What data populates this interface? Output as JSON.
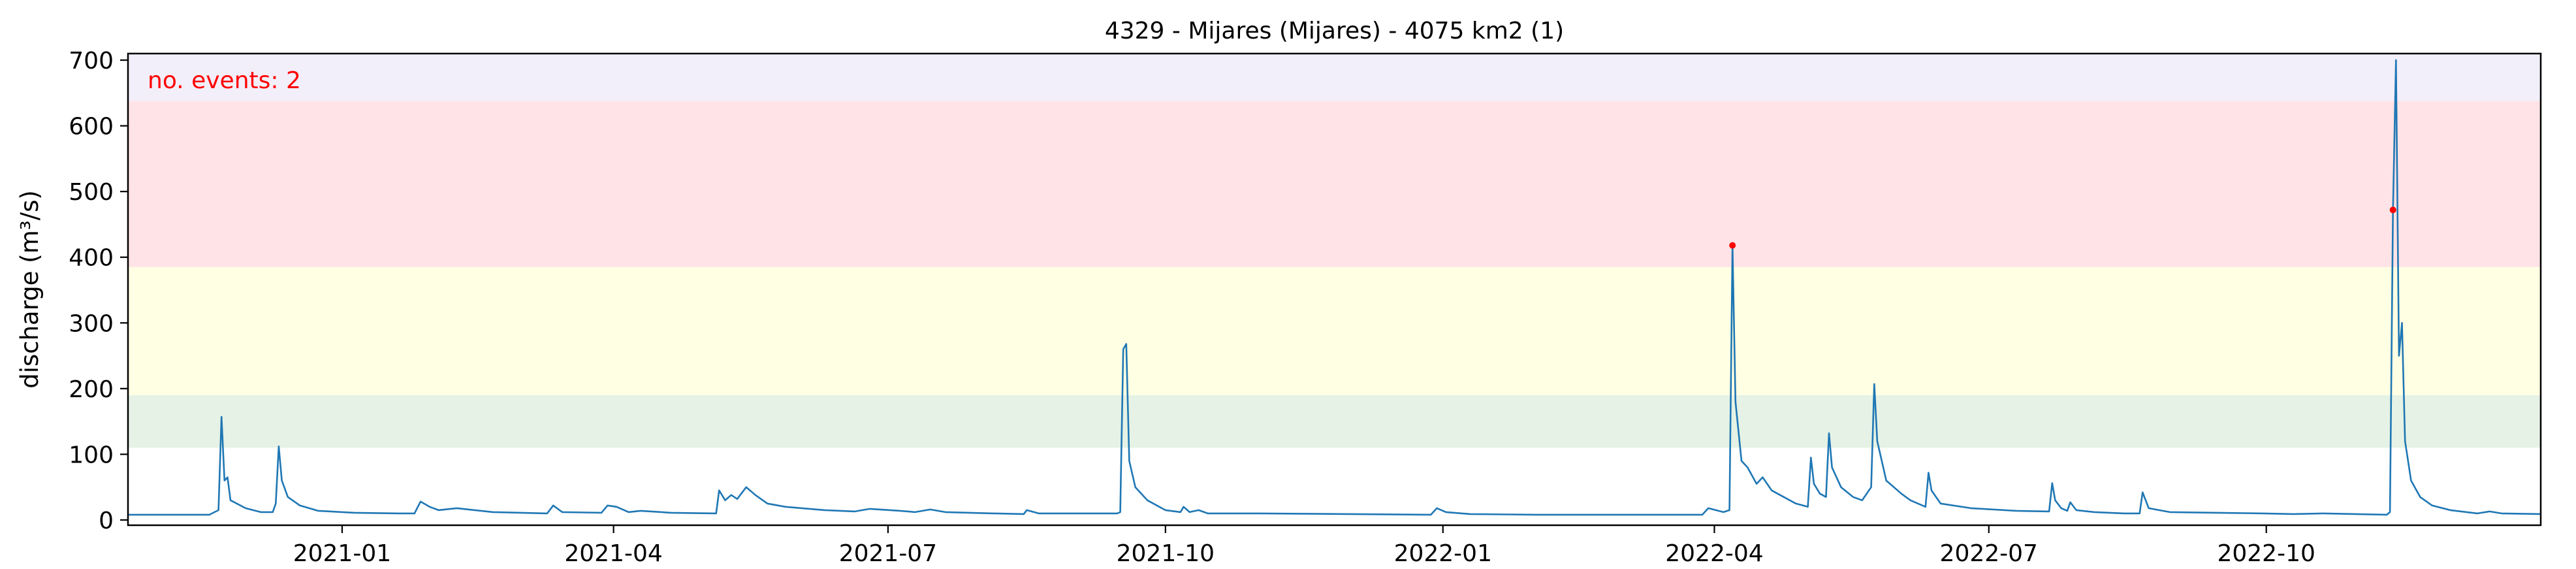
{
  "chart_data": {
    "type": "line",
    "title": "4329 - Mijares (Mijares) - 4075 km2 (1)",
    "xlabel": "",
    "ylabel": "discharge (m³/s)",
    "xlim": [
      "2020-10-22",
      "2022-12-31"
    ],
    "ylim": [
      -8,
      710
    ],
    "x_ticks": [
      "2021-01",
      "2021-04",
      "2021-07",
      "2021-10",
      "2022-01",
      "2022-04",
      "2022-07",
      "2022-10"
    ],
    "x_tick_dates": [
      "2021-01-01",
      "2021-04-01",
      "2021-07-01",
      "2021-10-01",
      "2022-01-01",
      "2022-04-01",
      "2022-07-01",
      "2022-10-01"
    ],
    "y_ticks": [
      0,
      100,
      200,
      300,
      400,
      500,
      600,
      700
    ],
    "grid": false,
    "threshold_bands": [
      {
        "from": 110,
        "to": 190,
        "color": "#e5f2e5"
      },
      {
        "from": 190,
        "to": 385,
        "color": "#ffffe3"
      },
      {
        "from": 385,
        "to": 638,
        "color": "#ffe3e6"
      },
      {
        "from": 638,
        "to": 710,
        "color": "#f2effa"
      }
    ],
    "annotation": "no. events: 2",
    "series": [
      {
        "color": "#1f77b4",
        "points": [
          [
            "2020-10-22",
            8
          ],
          [
            "2020-11-18",
            8
          ],
          [
            "2020-11-21",
            15
          ],
          [
            "2020-11-22",
            157
          ],
          [
            "2020-11-23",
            60
          ],
          [
            "2020-11-24",
            65
          ],
          [
            "2020-11-25",
            30
          ],
          [
            "2020-11-30",
            18
          ],
          [
            "2020-12-05",
            12
          ],
          [
            "2020-12-09",
            12
          ],
          [
            "2020-12-10",
            25
          ],
          [
            "2020-12-11",
            112
          ],
          [
            "2020-12-12",
            60
          ],
          [
            "2020-12-14",
            35
          ],
          [
            "2020-12-18",
            22
          ],
          [
            "2020-12-24",
            14
          ],
          [
            "2021-01-05",
            11
          ],
          [
            "2021-01-20",
            10
          ],
          [
            "2021-01-25",
            10
          ],
          [
            "2021-01-27",
            28
          ],
          [
            "2021-01-30",
            20
          ],
          [
            "2021-02-02",
            15
          ],
          [
            "2021-02-08",
            18
          ],
          [
            "2021-02-20",
            12
          ],
          [
            "2021-03-10",
            10
          ],
          [
            "2021-03-12",
            22
          ],
          [
            "2021-03-15",
            12
          ],
          [
            "2021-03-28",
            11
          ],
          [
            "2021-03-30",
            22
          ],
          [
            "2021-04-02",
            20
          ],
          [
            "2021-04-06",
            12
          ],
          [
            "2021-04-10",
            14
          ],
          [
            "2021-04-20",
            11
          ],
          [
            "2021-05-05",
            10
          ],
          [
            "2021-05-06",
            45
          ],
          [
            "2021-05-08",
            30
          ],
          [
            "2021-05-10",
            38
          ],
          [
            "2021-05-12",
            32
          ],
          [
            "2021-05-15",
            50
          ],
          [
            "2021-05-18",
            38
          ],
          [
            "2021-05-22",
            25
          ],
          [
            "2021-05-28",
            20
          ],
          [
            "2021-06-10",
            15
          ],
          [
            "2021-06-20",
            13
          ],
          [
            "2021-06-25",
            17
          ],
          [
            "2021-07-05",
            14
          ],
          [
            "2021-07-10",
            12
          ],
          [
            "2021-07-15",
            16
          ],
          [
            "2021-07-20",
            12
          ],
          [
            "2021-08-05",
            10
          ],
          [
            "2021-08-15",
            9
          ],
          [
            "2021-08-16",
            15
          ],
          [
            "2021-08-20",
            10
          ],
          [
            "2021-08-28",
            10
          ],
          [
            "2021-09-15",
            10
          ],
          [
            "2021-09-16",
            12
          ],
          [
            "2021-09-17",
            260
          ],
          [
            "2021-09-18",
            268
          ],
          [
            "2021-09-19",
            90
          ],
          [
            "2021-09-21",
            50
          ],
          [
            "2021-09-25",
            30
          ],
          [
            "2021-10-01",
            15
          ],
          [
            "2021-10-06",
            12
          ],
          [
            "2021-10-07",
            20
          ],
          [
            "2021-10-09",
            12
          ],
          [
            "2021-10-12",
            15
          ],
          [
            "2021-10-15",
            10
          ],
          [
            "2021-11-01",
            10
          ],
          [
            "2021-12-01",
            9
          ],
          [
            "2021-12-28",
            8
          ],
          [
            "2021-12-30",
            18
          ],
          [
            "2022-01-02",
            12
          ],
          [
            "2022-01-10",
            9
          ],
          [
            "2022-02-01",
            8
          ],
          [
            "2022-03-01",
            8
          ],
          [
            "2022-03-10",
            8
          ],
          [
            "2022-03-28",
            8
          ],
          [
            "2022-03-30",
            18
          ],
          [
            "2022-04-04",
            12
          ],
          [
            "2022-04-06",
            15
          ],
          [
            "2022-04-07",
            418
          ],
          [
            "2022-04-08",
            180
          ],
          [
            "2022-04-10",
            90
          ],
          [
            "2022-04-12",
            80
          ],
          [
            "2022-04-15",
            55
          ],
          [
            "2022-04-17",
            65
          ],
          [
            "2022-04-20",
            45
          ],
          [
            "2022-04-24",
            35
          ],
          [
            "2022-04-28",
            25
          ],
          [
            "2022-05-02",
            20
          ],
          [
            "2022-05-03",
            95
          ],
          [
            "2022-05-04",
            55
          ],
          [
            "2022-05-06",
            40
          ],
          [
            "2022-05-08",
            35
          ],
          [
            "2022-05-09",
            132
          ],
          [
            "2022-05-10",
            80
          ],
          [
            "2022-05-13",
            50
          ],
          [
            "2022-05-17",
            35
          ],
          [
            "2022-05-20",
            30
          ],
          [
            "2022-05-23",
            50
          ],
          [
            "2022-05-24",
            207
          ],
          [
            "2022-05-25",
            120
          ],
          [
            "2022-05-28",
            60
          ],
          [
            "2022-06-02",
            40
          ],
          [
            "2022-06-05",
            30
          ],
          [
            "2022-06-10",
            20
          ],
          [
            "2022-06-11",
            72
          ],
          [
            "2022-06-12",
            45
          ],
          [
            "2022-06-15",
            25
          ],
          [
            "2022-06-25",
            18
          ],
          [
            "2022-07-10",
            14
          ],
          [
            "2022-07-21",
            13
          ],
          [
            "2022-07-22",
            56
          ],
          [
            "2022-07-23",
            30
          ],
          [
            "2022-07-25",
            18
          ],
          [
            "2022-07-27",
            14
          ],
          [
            "2022-07-28",
            27
          ],
          [
            "2022-07-30",
            15
          ],
          [
            "2022-08-05",
            12
          ],
          [
            "2022-08-15",
            10
          ],
          [
            "2022-08-20",
            10
          ],
          [
            "2022-08-21",
            42
          ],
          [
            "2022-08-23",
            18
          ],
          [
            "2022-08-30",
            12
          ],
          [
            "2022-09-30",
            10
          ],
          [
            "2022-10-10",
            9
          ],
          [
            "2022-10-20",
            10
          ],
          [
            "2022-11-10",
            8
          ],
          [
            "2022-11-11",
            12
          ],
          [
            "2022-11-12",
            470
          ],
          [
            "2022-11-13",
            700
          ],
          [
            "2022-11-14",
            250
          ],
          [
            "2022-11-15",
            300
          ],
          [
            "2022-11-16",
            120
          ],
          [
            "2022-11-18",
            60
          ],
          [
            "2022-11-21",
            35
          ],
          [
            "2022-11-25",
            22
          ],
          [
            "2022-12-01",
            15
          ],
          [
            "2022-12-10",
            10
          ],
          [
            "2022-12-14",
            13
          ],
          [
            "2022-12-18",
            10
          ],
          [
            "2022-12-31",
            9
          ]
        ]
      }
    ],
    "event_markers": [
      {
        "x": "2022-04-07",
        "y": 418
      },
      {
        "x": "2022-11-12",
        "y": 472
      }
    ]
  }
}
